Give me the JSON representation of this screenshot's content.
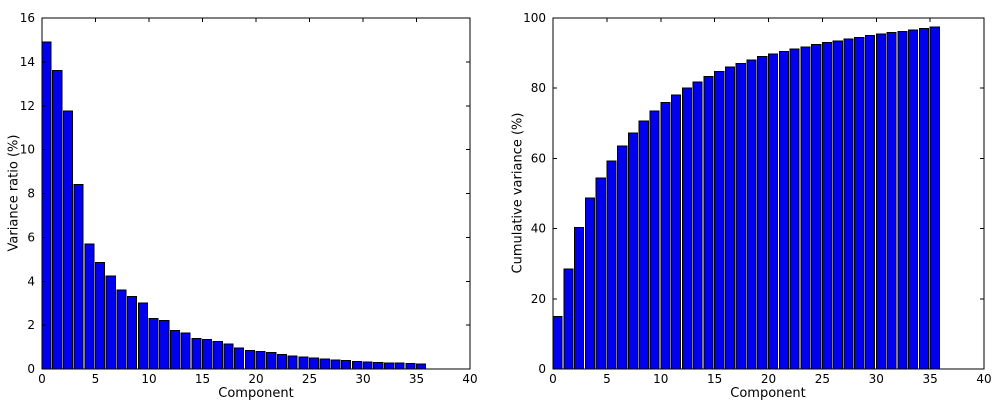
{
  "figure": {
    "background": "#ffffff",
    "bar_color": "#0000ee",
    "bar_edge_color": "#000000",
    "axis_color": "#000000",
    "text_color": "#000000"
  },
  "chart_data": [
    {
      "type": "bar",
      "title": "",
      "xlabel": "Component",
      "ylabel": "Variance ratio (%)",
      "xlim": [
        0,
        40
      ],
      "ylim": [
        0,
        16
      ],
      "xticks": [
        0,
        5,
        10,
        15,
        20,
        25,
        30,
        35,
        40
      ],
      "yticks": [
        0,
        2,
        4,
        6,
        8,
        10,
        12,
        14,
        16
      ],
      "grid": false,
      "legend_position": "none",
      "bar_width": 0.85,
      "bar_align": "edge",
      "x": [
        0,
        1,
        2,
        3,
        4,
        5,
        6,
        7,
        8,
        9,
        10,
        11,
        12,
        13,
        14,
        15,
        16,
        17,
        18,
        19,
        20,
        21,
        22,
        23,
        24,
        25,
        26,
        27,
        28,
        29,
        30,
        31,
        32,
        33,
        34,
        35
      ],
      "values": [
        14.9,
        13.6,
        11.75,
        8.4,
        5.7,
        4.85,
        4.25,
        3.6,
        3.3,
        3.0,
        2.3,
        2.2,
        1.75,
        1.65,
        1.4,
        1.35,
        1.25,
        1.15,
        0.95,
        0.85,
        0.8,
        0.75,
        0.65,
        0.6,
        0.55,
        0.5,
        0.45,
        0.4,
        0.38,
        0.35,
        0.33,
        0.3,
        0.28,
        0.27,
        0.25,
        0.23
      ]
    },
    {
      "type": "bar",
      "title": "",
      "xlabel": "Component",
      "ylabel": "Cumulative variance (%)",
      "xlim": [
        0,
        40
      ],
      "ylim": [
        0,
        100
      ],
      "xticks": [
        0,
        5,
        10,
        15,
        20,
        25,
        30,
        35,
        40
      ],
      "yticks": [
        0,
        20,
        40,
        60,
        80,
        100
      ],
      "grid": false,
      "legend_position": "none",
      "bar_width": 0.85,
      "bar_align": "edge",
      "x": [
        0,
        1,
        2,
        3,
        4,
        5,
        6,
        7,
        8,
        9,
        10,
        11,
        12,
        13,
        14,
        15,
        16,
        17,
        18,
        19,
        20,
        21,
        22,
        23,
        24,
        25,
        26,
        27,
        28,
        29,
        30,
        31,
        32,
        33,
        34,
        35
      ],
      "values": [
        14.9,
        28.5,
        40.3,
        48.7,
        54.4,
        59.3,
        63.6,
        67.3,
        70.6,
        73.5,
        75.9,
        78.1,
        80.0,
        81.8,
        83.3,
        84.7,
        86.0,
        87.1,
        88.1,
        89.0,
        89.8,
        90.5,
        91.2,
        91.8,
        92.4,
        93.0,
        93.5,
        94.0,
        94.5,
        95.0,
        95.4,
        95.8,
        96.2,
        96.6,
        97.0,
        97.4
      ]
    }
  ]
}
